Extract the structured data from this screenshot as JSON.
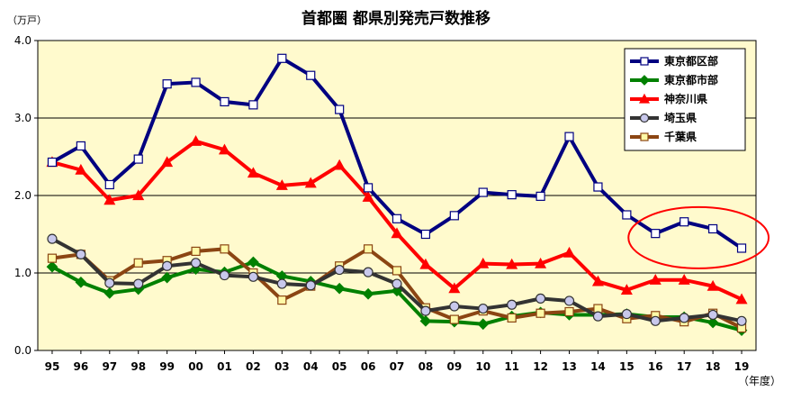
{
  "chart_data": {
    "type": "line",
    "title": "首都圏 都県別発売戸数推移",
    "y_unit": "（万戸）",
    "x_unit": "（年度）",
    "categories": [
      "95",
      "96",
      "97",
      "98",
      "99",
      "00",
      "01",
      "02",
      "03",
      "04",
      "05",
      "06",
      "07",
      "08",
      "09",
      "10",
      "11",
      "12",
      "13",
      "14",
      "15",
      "16",
      "17",
      "18",
      "19"
    ],
    "ylim": [
      0,
      4
    ],
    "yticks": [
      "0.0",
      "1.0",
      "2.0",
      "3.0",
      "4.0"
    ],
    "grid": true,
    "plot_background": "#fffacd",
    "legend_position": "top-right",
    "series": [
      {
        "name": "東京都区部",
        "color": "#000080",
        "marker": "square",
        "marker_fill": "#ffffff",
        "values": [
          2.43,
          2.64,
          2.14,
          2.47,
          3.44,
          3.46,
          3.21,
          3.17,
          3.77,
          3.55,
          3.11,
          2.1,
          1.7,
          1.5,
          1.74,
          2.04,
          2.01,
          1.99,
          2.76,
          2.11,
          1.75,
          1.51,
          1.66,
          1.57,
          1.32
        ]
      },
      {
        "name": "東京都市部",
        "color": "#008000",
        "marker": "diamond",
        "marker_fill": "#008000",
        "values": [
          1.08,
          0.88,
          0.74,
          0.79,
          0.94,
          1.05,
          1.01,
          1.14,
          0.96,
          0.89,
          0.8,
          0.73,
          0.77,
          0.38,
          0.37,
          0.34,
          0.44,
          0.49,
          0.46,
          0.46,
          0.47,
          0.43,
          0.43,
          0.36,
          0.26
        ]
      },
      {
        "name": "神奈川県",
        "color": "#ff0000",
        "marker": "triangle",
        "marker_fill": "#ff0000",
        "values": [
          2.43,
          2.33,
          1.94,
          2.0,
          2.43,
          2.7,
          2.59,
          2.29,
          2.13,
          2.16,
          2.39,
          1.98,
          1.51,
          1.11,
          0.8,
          1.12,
          1.11,
          1.12,
          1.26,
          0.89,
          0.78,
          0.91,
          0.91,
          0.83,
          0.66
        ]
      },
      {
        "name": "埼玉県",
        "color": "#333333",
        "marker": "circle",
        "marker_fill": "#c8c8ec",
        "values": [
          1.44,
          1.24,
          0.87,
          0.86,
          1.09,
          1.13,
          0.97,
          0.95,
          0.86,
          0.84,
          1.04,
          1.01,
          0.86,
          0.51,
          0.57,
          0.54,
          0.59,
          0.67,
          0.64,
          0.44,
          0.47,
          0.38,
          0.42,
          0.46,
          0.38
        ]
      },
      {
        "name": "千葉県",
        "color": "#8b4513",
        "marker": "square",
        "marker_fill": "#fff9a6",
        "values": [
          1.19,
          1.24,
          0.9,
          1.13,
          1.16,
          1.28,
          1.31,
          1.0,
          0.65,
          0.83,
          1.09,
          1.31,
          1.03,
          0.55,
          0.4,
          0.51,
          0.42,
          0.48,
          0.5,
          0.54,
          0.41,
          0.45,
          0.37,
          0.48,
          0.29
        ]
      }
    ],
    "annotation": {
      "shape": "ellipse",
      "color": "#ff0000",
      "highlights": [
        "16",
        "17",
        "18",
        "19"
      ]
    }
  }
}
